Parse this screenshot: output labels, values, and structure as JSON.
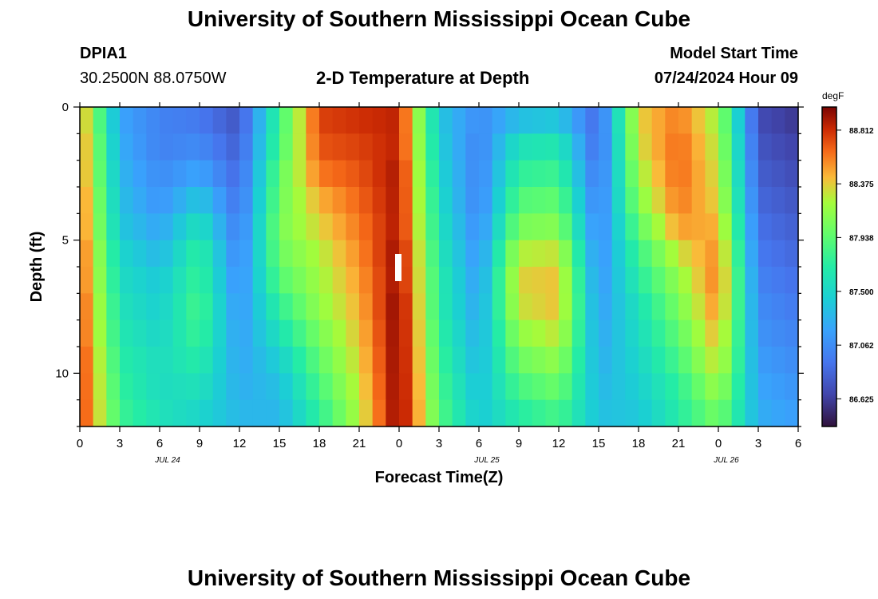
{
  "header": {
    "title": "University of Southern Mississippi Ocean Cube",
    "station": "DPIA1",
    "coords": "30.2500N  88.0750W",
    "plot_title": "2-D Temperature at Depth",
    "model_label": "Model Start Time",
    "model_time": "07/24/2024 Hour 09"
  },
  "footer": {
    "title": "University of Southern Mississippi Ocean Cube"
  },
  "chart_data": {
    "type": "heatmap",
    "title": "2-D Temperature at Depth",
    "xlabel": "Forecast Time(Z)",
    "ylabel": "Depth (ft)",
    "x_tick_labels": [
      "0",
      "3",
      "6",
      "9",
      "12",
      "15",
      "18",
      "21",
      "0",
      "3",
      "6",
      "9",
      "12",
      "15",
      "18",
      "21",
      "0",
      "3",
      "6"
    ],
    "date_labels": [
      "JUL 24",
      "JUL 25",
      "JUL 26"
    ],
    "x_range_hours": [
      0,
      54
    ],
    "y_ticks": [
      "0",
      "5",
      "10"
    ],
    "y_range_ft": [
      0,
      12
    ],
    "colorbar": {
      "unit": "degF",
      "ticks": [
        "88.812",
        "88.375",
        "87.938",
        "87.500",
        "87.062",
        "86.625"
      ],
      "range": [
        86.4,
        89.0
      ]
    },
    "depths_ft": [
      0.5,
      1.5,
      2.5,
      3.5,
      4.5,
      5.5,
      6.5,
      7.5,
      8.5,
      9.5,
      10.5,
      11.5
    ],
    "hours": [
      0,
      3,
      6,
      9,
      12,
      15,
      18,
      21,
      24,
      27,
      30,
      33,
      36,
      39,
      42,
      45,
      48,
      51,
      54
    ],
    "temperature_degF": [
      [
        88.55,
        87.2,
        87.0,
        86.95,
        86.75,
        87.8,
        88.75,
        88.8,
        88.85,
        87.4,
        87.05,
        87.35,
        87.4,
        86.85,
        88.35,
        88.6,
        88.2,
        86.7,
        86.6
      ],
      [
        88.6,
        87.25,
        87.0,
        87.05,
        86.8,
        87.85,
        88.7,
        88.75,
        88.85,
        87.45,
        87.0,
        87.6,
        87.65,
        86.85,
        88.3,
        88.65,
        88.25,
        86.75,
        86.65
      ],
      [
        88.6,
        87.3,
        87.05,
        87.2,
        86.85,
        87.95,
        88.6,
        88.7,
        88.9,
        87.5,
        87.0,
        87.75,
        87.8,
        86.9,
        88.2,
        88.65,
        88.3,
        86.8,
        86.7
      ],
      [
        88.65,
        87.35,
        87.1,
        87.4,
        86.9,
        88.0,
        88.45,
        88.65,
        88.9,
        87.55,
        87.0,
        87.9,
        87.95,
        86.95,
        88.1,
        88.6,
        88.35,
        86.85,
        86.75
      ],
      [
        88.65,
        87.4,
        87.2,
        87.6,
        86.95,
        88.05,
        88.35,
        88.6,
        88.9,
        87.6,
        87.05,
        88.05,
        88.1,
        87.0,
        87.95,
        88.5,
        88.45,
        86.9,
        86.8
      ],
      [
        88.7,
        87.5,
        87.3,
        87.75,
        87.0,
        88.0,
        88.25,
        88.55,
        88.95,
        87.65,
        87.1,
        88.25,
        88.3,
        87.05,
        87.8,
        88.3,
        88.55,
        86.95,
        86.85
      ],
      [
        88.7,
        87.55,
        87.4,
        87.8,
        87.05,
        87.9,
        88.2,
        88.5,
        88.95,
        87.7,
        87.15,
        88.35,
        88.4,
        87.1,
        87.7,
        88.15,
        88.6,
        87.0,
        86.9
      ],
      [
        88.75,
        87.6,
        87.45,
        87.85,
        87.1,
        87.75,
        88.15,
        88.45,
        89.0,
        87.7,
        87.2,
        88.3,
        88.4,
        87.15,
        87.6,
        88.05,
        88.55,
        87.05,
        86.95
      ],
      [
        88.75,
        87.65,
        87.5,
        87.8,
        87.15,
        87.6,
        88.05,
        88.4,
        89.0,
        87.75,
        87.25,
        88.15,
        88.3,
        87.2,
        87.55,
        87.95,
        88.45,
        87.1,
        87.0
      ],
      [
        88.8,
        87.7,
        87.55,
        87.7,
        87.2,
        87.45,
        87.95,
        88.35,
        89.0,
        87.8,
        87.3,
        88.0,
        88.15,
        87.25,
        87.5,
        87.85,
        88.35,
        87.15,
        87.05
      ],
      [
        88.8,
        87.75,
        87.55,
        87.6,
        87.25,
        87.35,
        87.85,
        88.3,
        89.0,
        87.85,
        87.35,
        87.85,
        88.0,
        87.3,
        87.45,
        87.75,
        88.2,
        87.2,
        87.1
      ],
      [
        88.8,
        87.8,
        87.6,
        87.5,
        87.3,
        87.3,
        87.75,
        88.25,
        89.0,
        87.9,
        87.4,
        87.7,
        87.85,
        87.35,
        87.4,
        87.7,
        88.05,
        87.25,
        87.15
      ]
    ]
  }
}
